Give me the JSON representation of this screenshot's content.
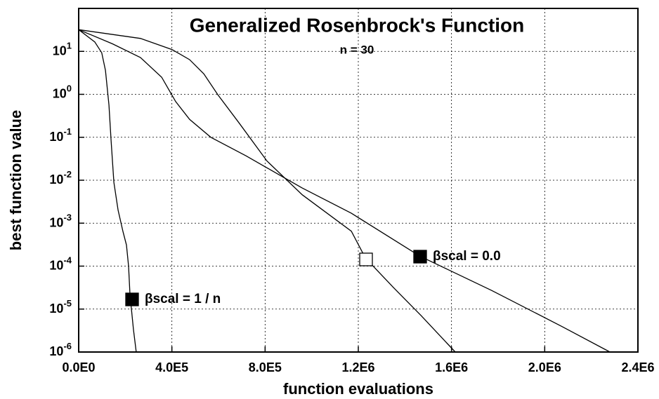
{
  "chart_data": {
    "type": "line",
    "title": "Generalized Rosenbrock's Function",
    "subtitle": "n = 30",
    "xlabel": "function evaluations",
    "ylabel": "best function value",
    "xlim": [
      0,
      2400000
    ],
    "ylim": [
      1e-06,
      100
    ],
    "log_y": true,
    "grid": true,
    "xticks": [
      {
        "value": 0,
        "label": "0.0E0"
      },
      {
        "value": 400000,
        "label": "4.0E5"
      },
      {
        "value": 800000,
        "label": "8.0E5"
      },
      {
        "value": 1200000,
        "label": "1.2E6"
      },
      {
        "value": 1600000,
        "label": "1.6E6"
      },
      {
        "value": 2000000,
        "label": "2.0E6"
      },
      {
        "value": 2400000,
        "label": "2.4E6"
      }
    ],
    "yticks": [
      {
        "value": 1e-06,
        "label": "10^-6"
      },
      {
        "value": 1e-05,
        "label": "10^-5"
      },
      {
        "value": 0.0001,
        "label": "10^-4"
      },
      {
        "value": 0.001,
        "label": "10^-3"
      },
      {
        "value": 0.01,
        "label": "10^-2"
      },
      {
        "value": 0.1,
        "label": "10^-1"
      },
      {
        "value": 1,
        "label": "10^0"
      },
      {
        "value": 10,
        "label": "10^1"
      }
    ],
    "series": [
      {
        "name": "βscal = 1 / n",
        "color": "#000000",
        "marker": "filled",
        "x": [
          0,
          69000,
          99000,
          115000,
          130000,
          139000,
          151000,
          169000,
          190000,
          205000,
          214000,
          220000,
          235000,
          247000
        ],
        "values": [
          32,
          16.6,
          9.3,
          3.6,
          0.56,
          0.085,
          0.0089,
          0.002,
          0.00064,
          0.00031,
          0.0001,
          2.2e-05,
          3.4e-06,
          1e-06
        ]
      },
      {
        "name": "βscal = 0.0",
        "color": "#000000",
        "marker": "filled",
        "x": [
          0,
          145000,
          265000,
          356000,
          416000,
          476000,
          567000,
          718000,
          959000,
          1170000,
          1465000,
          1773000,
          2075000,
          2280000
        ],
        "values": [
          32,
          15,
          7.2,
          2.5,
          0.68,
          0.26,
          0.1,
          0.037,
          0.0066,
          0.0017,
          0.00017,
          2.7e-05,
          3.9e-06,
          1e-06
        ]
      },
      {
        "color": "#000000",
        "marker": "open",
        "x": [
          0,
          265000,
          401000,
          476000,
          537000,
          597000,
          687000,
          808000,
          959000,
          1170000,
          1230000,
          1350000,
          1470000,
          1616000
        ],
        "values": [
          32,
          20,
          11,
          6.4,
          3.0,
          0.98,
          0.22,
          0.028,
          0.0046,
          0.00065,
          0.000155,
          3.2e-05,
          7e-06,
          1e-06
        ]
      }
    ]
  }
}
